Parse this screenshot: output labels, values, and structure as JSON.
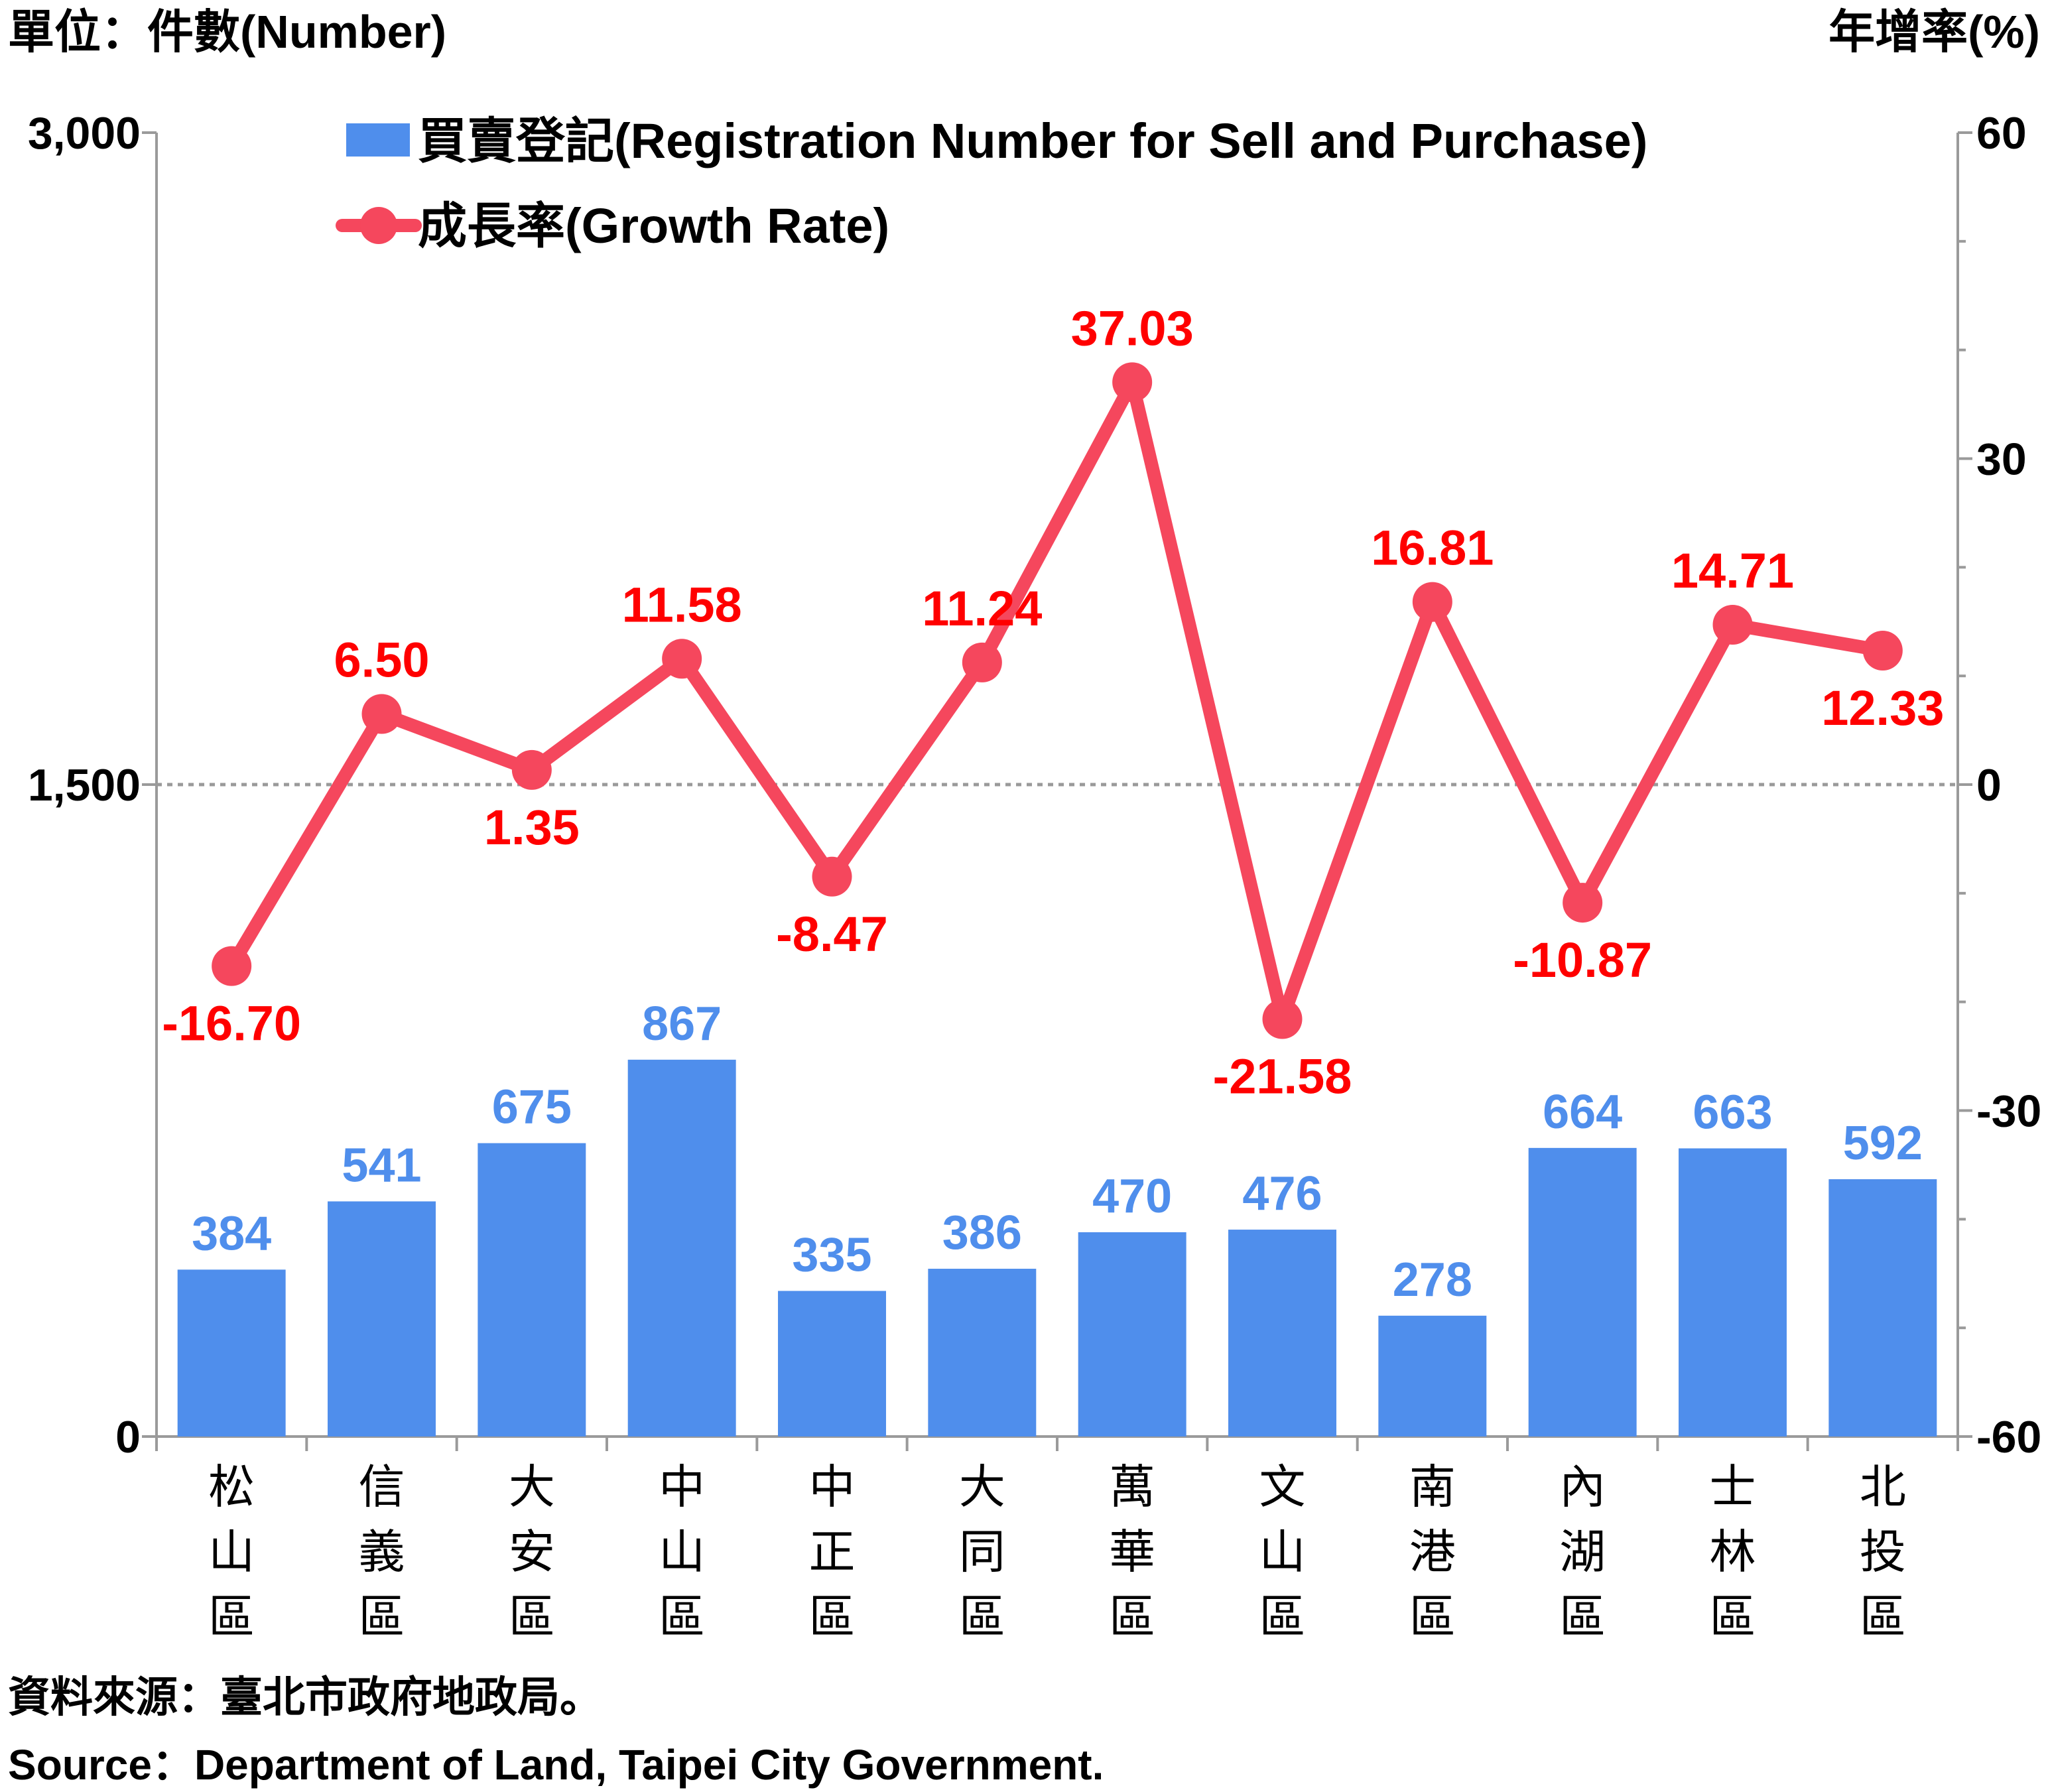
{
  "chart_data": {
    "type": "bar",
    "left_axis_title": "單位：件數(Number)",
    "right_axis_title": "年增率(%)",
    "categories": [
      "松\n山\n區",
      "信\n義\n區",
      "大\n安\n區",
      "中\n山\n區",
      "中\n正\n區",
      "大\n同\n區",
      "萬\n華\n區",
      "文\n山\n區",
      "南\n港\n區",
      "內\n湖\n區",
      "士\n林\n區",
      "北\n投\n區"
    ],
    "series": [
      {
        "name": "買賣登記(Registration Number for Sell and Purchase)",
        "type": "bar",
        "axis": "left",
        "color": "#4f8eec",
        "values": [
          384,
          541,
          675,
          867,
          335,
          386,
          470,
          476,
          278,
          664,
          663,
          592
        ],
        "value_labels": [
          "384",
          "541",
          "675",
          "867",
          "335",
          "386",
          "470",
          "476",
          "278",
          "664",
          "663",
          "592"
        ]
      },
      {
        "name": "成長率(Growth Rate)",
        "type": "line",
        "axis": "right",
        "color": "#f5475d",
        "label_color": "#ff0000",
        "values": [
          -16.7,
          6.5,
          1.35,
          11.58,
          -8.47,
          11.24,
          37.03,
          -21.58,
          16.81,
          -10.87,
          14.71,
          12.33
        ],
        "value_labels": [
          "-16.70",
          "6.50",
          "1.35",
          "11.58",
          "-8.47",
          "11.24",
          "37.03",
          "-21.58",
          "16.81",
          "-10.87",
          "14.71",
          "12.33"
        ]
      }
    ],
    "left_axis": {
      "min": 0,
      "max": 3000,
      "ticks": [
        0,
        1500,
        3000
      ],
      "tick_labels": [
        "0",
        "1,500",
        "3,000"
      ]
    },
    "right_axis": {
      "min": -60,
      "max": 60,
      "ticks": [
        -60,
        -30,
        0,
        30,
        60
      ],
      "tick_labels": [
        "-60",
        "-30",
        "0",
        "30",
        "60"
      ]
    },
    "reference_line": {
      "axis": "right",
      "value": 0,
      "style": "dotted"
    },
    "legend_position": "top"
  },
  "source": {
    "zh": "資料來源：臺北市政府地政局。",
    "en": "Source：Department of Land, Taipei City Government."
  }
}
